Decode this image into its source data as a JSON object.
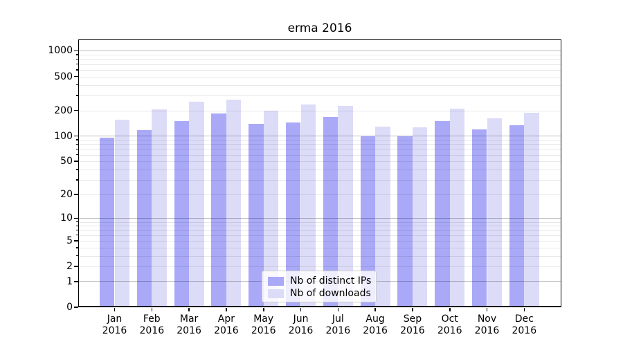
{
  "title": "erma 2016",
  "chart_data": {
    "type": "bar",
    "title": "erma 2016",
    "categories": [
      "Jan",
      "Feb",
      "Mar",
      "Apr",
      "May",
      "Jun",
      "Jul",
      "Aug",
      "Sep",
      "Oct",
      "Nov",
      "Dec"
    ],
    "year": "2016",
    "series": [
      {
        "name": "Nb of distinct IPs",
        "color": "#a9a9f8",
        "values": [
          96,
          117,
          150,
          185,
          138,
          145,
          168,
          100,
          100,
          151,
          119,
          133
        ]
      },
      {
        "name": "Nb of downloads",
        "color": "#dcdcf8",
        "values": [
          156,
          205,
          252,
          270,
          198,
          235,
          228,
          129,
          126,
          209,
          162,
          188
        ]
      }
    ],
    "xlabel": "",
    "ylabel": "",
    "yscale": "log1p",
    "ylim": [
      0,
      1360
    ],
    "y_ticks_labeled": [
      0,
      1,
      2,
      5,
      10,
      20,
      50,
      100,
      200,
      500,
      1000
    ],
    "grid": "horizontal major+minor, drawn above bars",
    "legend_position": "lower center"
  }
}
